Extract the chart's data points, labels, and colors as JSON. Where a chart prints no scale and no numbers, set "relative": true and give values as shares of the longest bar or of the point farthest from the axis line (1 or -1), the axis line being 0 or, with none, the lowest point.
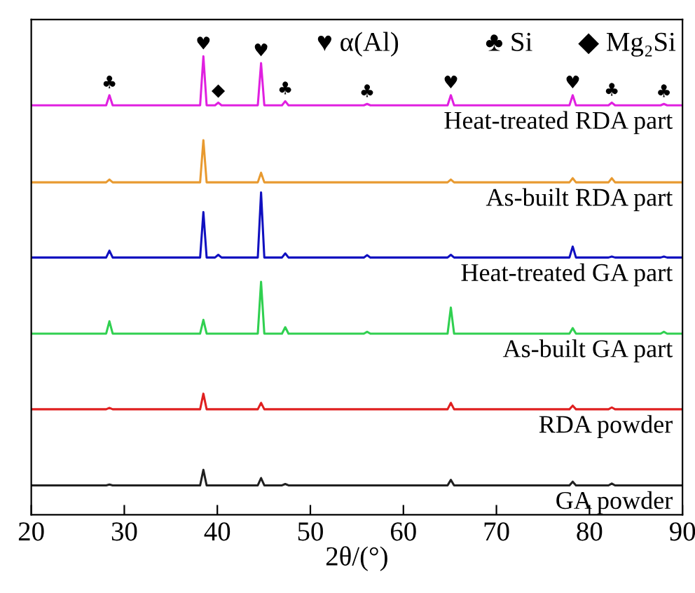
{
  "chart_data": {
    "type": "line",
    "relative": true,
    "xlabel": "2θ/(°)",
    "xlim": [
      20,
      90
    ],
    "xticks": [
      20,
      30,
      40,
      50,
      60,
      70,
      80,
      90
    ],
    "grid": false,
    "legend": false,
    "marker": "none",
    "line_style": "solid",
    "series": [
      {
        "name": "Heat-treated RDA part",
        "color": "#e020e0",
        "x": [
          20,
          28.05,
          28.4,
          28.75,
          38.15,
          38.5,
          38.85,
          39.75,
          40.1,
          40.45,
          44.35,
          44.7,
          45.05,
          46.95,
          47.3,
          47.65,
          55.75,
          56.1,
          56.45,
          64.75,
          65.1,
          65.45,
          77.85,
          78.2,
          78.55,
          82.05,
          82.4,
          82.75,
          87.65,
          88.0,
          88.35,
          90
        ],
        "values": [
          0.893,
          0.893,
          0.915,
          0.893,
          0.893,
          1.0,
          0.893,
          0.893,
          0.899,
          0.893,
          0.893,
          0.985,
          0.893,
          0.893,
          0.902,
          0.893,
          0.893,
          0.896,
          0.893,
          0.893,
          0.915,
          0.893,
          0.893,
          0.915,
          0.893,
          0.893,
          0.899,
          0.893,
          0.893,
          0.896,
          0.893,
          0.893
        ]
      },
      {
        "name": "As-built RDA part",
        "color": "#e89a30",
        "x": [
          20,
          28.05,
          28.4,
          28.75,
          38.15,
          38.5,
          38.85,
          44.35,
          44.7,
          45.05,
          64.75,
          65.1,
          65.45,
          77.85,
          78.2,
          78.55,
          82.05,
          82.4,
          82.75,
          90
        ],
        "values": [
          0.725,
          0.725,
          0.731,
          0.725,
          0.725,
          0.817,
          0.725,
          0.725,
          0.746,
          0.725,
          0.725,
          0.731,
          0.725,
          0.725,
          0.734,
          0.725,
          0.725,
          0.734,
          0.725,
          0.725
        ]
      },
      {
        "name": "Heat-treated GA part",
        "color": "#1010c0",
        "x": [
          20,
          28.05,
          28.4,
          28.75,
          38.15,
          38.5,
          38.85,
          39.75,
          40.1,
          40.45,
          44.35,
          44.7,
          45.05,
          46.95,
          47.3,
          47.65,
          55.75,
          56.1,
          56.45,
          64.75,
          65.1,
          65.45,
          77.85,
          78.2,
          78.55,
          82.05,
          82.4,
          82.75,
          87.65,
          88.0,
          88.35,
          90
        ],
        "values": [
          0.561,
          0.561,
          0.576,
          0.561,
          0.561,
          0.66,
          0.561,
          0.561,
          0.567,
          0.561,
          0.561,
          0.703,
          0.561,
          0.561,
          0.57,
          0.561,
          0.561,
          0.566,
          0.561,
          0.561,
          0.567,
          0.561,
          0.561,
          0.585,
          0.561,
          0.561,
          0.563,
          0.561,
          0.561,
          0.563,
          0.561,
          0.561
        ]
      },
      {
        "name": "As-built GA part",
        "color": "#30d050",
        "x": [
          20,
          28.05,
          28.4,
          28.75,
          38.15,
          38.5,
          38.85,
          44.35,
          44.7,
          45.05,
          46.95,
          47.3,
          47.65,
          55.75,
          56.1,
          56.45,
          64.75,
          65.1,
          65.45,
          77.85,
          78.2,
          78.55,
          87.65,
          88.0,
          88.35,
          90
        ],
        "values": [
          0.395,
          0.395,
          0.422,
          0.395,
          0.395,
          0.425,
          0.395,
          0.395,
          0.508,
          0.395,
          0.395,
          0.409,
          0.395,
          0.395,
          0.399,
          0.395,
          0.395,
          0.452,
          0.395,
          0.395,
          0.407,
          0.395,
          0.395,
          0.399,
          0.395,
          0.395
        ]
      },
      {
        "name": "RDA powder",
        "color": "#e02020",
        "x": [
          20,
          28.05,
          28.4,
          28.75,
          38.15,
          38.5,
          38.85,
          44.35,
          44.7,
          45.05,
          64.75,
          65.1,
          65.45,
          77.85,
          78.2,
          78.55,
          82.05,
          82.4,
          82.75,
          90
        ],
        "values": [
          0.23,
          0.23,
          0.233,
          0.23,
          0.23,
          0.264,
          0.23,
          0.23,
          0.244,
          0.23,
          0.23,
          0.244,
          0.23,
          0.23,
          0.238,
          0.23,
          0.23,
          0.234,
          0.23,
          0.23
        ]
      },
      {
        "name": "GA powder",
        "color": "#202020",
        "x": [
          20,
          28.05,
          28.4,
          28.75,
          38.15,
          38.5,
          38.85,
          44.35,
          44.7,
          45.05,
          46.95,
          47.3,
          47.65,
          64.75,
          65.1,
          65.45,
          77.85,
          78.2,
          78.55,
          82.05,
          82.4,
          82.75,
          90
        ],
        "values": [
          0.064,
          0.064,
          0.066,
          0.064,
          0.064,
          0.098,
          0.064,
          0.064,
          0.08,
          0.064,
          0.064,
          0.067,
          0.064,
          0.064,
          0.076,
          0.064,
          0.064,
          0.072,
          0.064,
          0.064,
          0.068,
          0.064,
          0.064
        ]
      }
    ],
    "annotations": [
      {
        "text": "♣",
        "x": 28.4,
        "y": 0.915
      },
      {
        "text": "♥",
        "x": 38.5,
        "y": 1.0
      },
      {
        "text": "◆",
        "x": 40.1,
        "y": 0.899
      },
      {
        "text": "♥",
        "x": 44.7,
        "y": 0.985
      },
      {
        "text": "♣",
        "x": 47.3,
        "y": 0.902
      },
      {
        "text": "♣",
        "x": 56.1,
        "y": 0.896
      },
      {
        "text": "♥",
        "x": 65.1,
        "y": 0.915
      },
      {
        "text": "♥",
        "x": 78.2,
        "y": 0.915
      },
      {
        "text": "♣",
        "x": 82.4,
        "y": 0.899
      },
      {
        "text": "♣",
        "x": 88.0,
        "y": 0.896
      },
      "♥ α(Al)",
      "♣ Si",
      "◆ Mg₂Si"
    ]
  }
}
